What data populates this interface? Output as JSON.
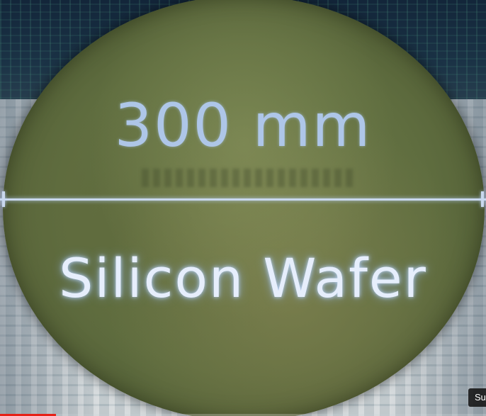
{
  "video": {
    "size_label": "300 mm",
    "name_label": "Silicon Wafer",
    "subtitle_badge": "Su",
    "progress_fraction": 0.115,
    "colors": {
      "accent_line": "#c9d8ee",
      "progress": "#e62117",
      "wafer": "#5f6d3f"
    }
  }
}
